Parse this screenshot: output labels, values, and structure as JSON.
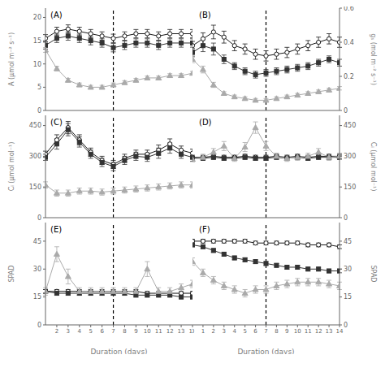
{
  "chart_data": [
    {
      "type": "line",
      "annotations": [
        "(A)"
      ],
      "ylabel": "A (μmol m⁻² s⁻¹)",
      "xlim": [
        1,
        14
      ],
      "xticks": [
        2,
        3,
        4,
        5,
        6,
        7,
        8,
        9,
        10,
        11,
        12,
        13,
        14
      ],
      "ylim": [
        0,
        22
      ],
      "yticks": [
        0,
        5,
        10,
        15,
        20
      ],
      "tick_labels": "y",
      "grid": false,
      "vline": 7,
      "x": [
        1,
        2,
        3,
        4,
        5,
        6,
        7,
        8,
        9,
        10,
        11,
        12,
        13,
        14
      ],
      "series": [
        {
          "color": "#1a1a1a",
          "marker": "open_circle",
          "values": [
            15.5,
            17,
            17.5,
            17,
            16.5,
            16,
            15.5,
            16,
            16.5,
            16.5,
            16,
            16.5,
            16.5,
            16.5
          ],
          "yerr": [
            0.8,
            0.9,
            0.9,
            0.9,
            0.9,
            0.9,
            0.9,
            0.9,
            0.9,
            0.9,
            0.9,
            0.9,
            0.9,
            0.9
          ]
        },
        {
          "color": "#333333",
          "marker": "square",
          "values": [
            14,
            15.5,
            16,
            15.5,
            15,
            14.5,
            13.5,
            14,
            14.5,
            14.5,
            14,
            14.5,
            14.5,
            14.5
          ],
          "yerr": [
            0.8,
            0.9,
            0.9,
            0.9,
            0.9,
            0.9,
            0.9,
            0.9,
            0.9,
            0.9,
            0.9,
            0.9,
            0.9,
            0.9
          ]
        },
        {
          "color": "#aaaaaa",
          "marker": "triangle",
          "values": [
            13,
            9,
            6.5,
            5.5,
            5,
            5,
            5.5,
            6,
            6.5,
            7,
            7,
            7.5,
            7.5,
            8
          ],
          "yerr": [
            0.5,
            0.5,
            0.4,
            0.4,
            0.4,
            0.4,
            0.4,
            0.4,
            0.4,
            0.4,
            0.4,
            0.4,
            0.4,
            0.4
          ]
        }
      ]
    },
    {
      "type": "line",
      "annotations": [
        "(B)"
      ],
      "ylabel": "gₛ (mol m⁻² s⁻¹)",
      "xlim": [
        0,
        14
      ],
      "xticks": [
        0,
        1,
        2,
        3,
        4,
        5,
        6,
        7,
        8,
        9,
        10,
        11,
        12,
        13,
        14
      ],
      "ylim": [
        0.0,
        0.6
      ],
      "yticks": [
        0.0,
        0.2,
        0.4,
        0.6
      ],
      "tick_labels": "y",
      "grid": false,
      "vline": 7,
      "x": [
        0,
        1,
        2,
        3,
        4,
        5,
        6,
        7,
        8,
        9,
        10,
        11,
        12,
        13,
        14
      ],
      "series": [
        {
          "color": "#1a1a1a",
          "marker": "open_circle",
          "values": [
            0.38,
            0.42,
            0.46,
            0.43,
            0.38,
            0.36,
            0.33,
            0.32,
            0.33,
            0.34,
            0.36,
            0.38,
            0.4,
            0.42,
            0.4
          ],
          "yerr": [
            0.025,
            0.035,
            0.04,
            0.035,
            0.03,
            0.03,
            0.03,
            0.03,
            0.03,
            0.03,
            0.03,
            0.03,
            0.03,
            0.03,
            0.03
          ]
        },
        {
          "color": "#333333",
          "marker": "square",
          "values": [
            0.34,
            0.38,
            0.36,
            0.3,
            0.26,
            0.23,
            0.21,
            0.22,
            0.23,
            0.24,
            0.25,
            0.26,
            0.28,
            0.3,
            0.28
          ],
          "yerr": [
            0.025,
            0.035,
            0.035,
            0.025,
            0.02,
            0.02,
            0.02,
            0.02,
            0.02,
            0.02,
            0.02,
            0.02,
            0.02,
            0.02,
            0.02
          ]
        },
        {
          "color": "#aaaaaa",
          "marker": "triangle",
          "values": [
            0.3,
            0.24,
            0.15,
            0.1,
            0.08,
            0.07,
            0.06,
            0.06,
            0.07,
            0.08,
            0.09,
            0.1,
            0.11,
            0.12,
            0.13
          ],
          "yerr": [
            0.02,
            0.02,
            0.015,
            0.01,
            0.01,
            0.01,
            0.01,
            0.01,
            0.01,
            0.01,
            0.01,
            0.01,
            0.01,
            0.01,
            0.01
          ]
        }
      ]
    },
    {
      "type": "line",
      "annotations": [
        "(C)"
      ],
      "ylabel": "Cᵢ (μmol mol⁻¹)",
      "xlim": [
        1,
        14
      ],
      "xticks": [
        2,
        3,
        4,
        5,
        6,
        7,
        8,
        9,
        10,
        11,
        12,
        13,
        14
      ],
      "ylim": [
        0,
        500
      ],
      "yticks": [
        0,
        150,
        300,
        450
      ],
      "tick_labels": "y",
      "grid": false,
      "vline": 7,
      "x": [
        1,
        2,
        3,
        4,
        5,
        6,
        7,
        8,
        9,
        10,
        11,
        12,
        13,
        14
      ],
      "series": [
        {
          "color": "#1a1a1a",
          "marker": "open_circle",
          "values": [
            310,
            380,
            440,
            380,
            320,
            280,
            260,
            290,
            310,
            310,
            330,
            360,
            330,
            315
          ],
          "yerr": [
            15,
            25,
            30,
            25,
            20,
            20,
            20,
            20,
            20,
            20,
            25,
            25,
            20,
            20
          ]
        },
        {
          "color": "#333333",
          "marker": "square",
          "values": [
            295,
            360,
            430,
            370,
            310,
            270,
            250,
            280,
            300,
            295,
            315,
            340,
            310,
            295
          ],
          "yerr": [
            15,
            25,
            30,
            25,
            20,
            20,
            20,
            20,
            20,
            20,
            25,
            25,
            20,
            20
          ]
        },
        {
          "color": "#aaaaaa",
          "marker": "triangle",
          "values": [
            160,
            120,
            120,
            130,
            130,
            125,
            130,
            135,
            140,
            145,
            150,
            155,
            160,
            160
          ],
          "yerr": [
            15,
            15,
            15,
            15,
            15,
            15,
            15,
            15,
            15,
            15,
            15,
            15,
            15,
            15
          ]
        }
      ]
    },
    {
      "type": "line",
      "annotations": [
        "(D)"
      ],
      "ylabel": "Cᵢ (μmol mol⁻¹)",
      "xlim": [
        0,
        14
      ],
      "xticks": [
        0,
        1,
        2,
        3,
        4,
        5,
        6,
        7,
        8,
        9,
        10,
        11,
        12,
        13,
        14
      ],
      "ylim": [
        0,
        500
      ],
      "yticks": [
        0,
        150,
        300,
        450
      ],
      "tick_labels": "y",
      "grid": false,
      "vline": 7,
      "x": [
        0,
        1,
        2,
        3,
        4,
        5,
        6,
        7,
        8,
        9,
        10,
        11,
        12,
        13,
        14
      ],
      "series": [
        {
          "color": "#1a1a1a",
          "marker": "open_circle",
          "values": [
            295,
            295,
            300,
            295,
            295,
            300,
            295,
            295,
            300,
            295,
            300,
            295,
            300,
            300,
            300
          ],
          "yerr": [
            10,
            10,
            10,
            10,
            10,
            10,
            10,
            10,
            10,
            10,
            10,
            10,
            10,
            10,
            10
          ]
        },
        {
          "color": "#333333",
          "marker": "square",
          "values": [
            290,
            290,
            295,
            290,
            290,
            295,
            290,
            290,
            295,
            290,
            295,
            290,
            295,
            295,
            295
          ],
          "yerr": [
            10,
            10,
            10,
            10,
            10,
            10,
            10,
            10,
            10,
            10,
            10,
            10,
            10,
            10,
            10
          ]
        },
        {
          "color": "#aaaaaa",
          "marker": "triangle",
          "values": [
            285,
            295,
            320,
            350,
            290,
            345,
            440,
            350,
            300,
            290,
            295,
            300,
            320,
            295,
            300
          ],
          "yerr": [
            12,
            15,
            18,
            22,
            15,
            22,
            28,
            22,
            15,
            15,
            15,
            15,
            18,
            15,
            15
          ]
        }
      ]
    },
    {
      "type": "line",
      "annotations": [
        "(E)"
      ],
      "ylabel": "SPAD",
      "xlabel": "Duration (days)",
      "xlim": [
        1,
        14
      ],
      "xticks": [
        2,
        3,
        4,
        5,
        6,
        7,
        8,
        9,
        10,
        11,
        12,
        13,
        14
      ],
      "ylim": [
        0,
        55
      ],
      "yticks": [
        0,
        15,
        30,
        45
      ],
      "grid": false,
      "vline": 7,
      "x": [
        1,
        2,
        3,
        4,
        5,
        6,
        7,
        8,
        9,
        10,
        11,
        12,
        13,
        14
      ],
      "series": [
        {
          "color": "#1a1a1a",
          "marker": "open_circle",
          "values": [
            18,
            18,
            18,
            18,
            18,
            18,
            18,
            18,
            18,
            17,
            17,
            17,
            17,
            17
          ],
          "yerr": [
            1,
            1,
            1,
            1,
            1,
            1,
            1,
            1,
            1,
            1,
            1,
            1,
            1,
            1
          ]
        },
        {
          "color": "#333333",
          "marker": "square",
          "values": [
            18,
            17,
            17,
            17,
            17,
            17,
            17,
            17,
            16,
            16,
            16,
            16,
            15,
            15
          ],
          "yerr": [
            1,
            1,
            1,
            1,
            1,
            1,
            1,
            1,
            1,
            1,
            1,
            1,
            1,
            1
          ]
        },
        {
          "color": "#aaaaaa",
          "marker": "triangle",
          "values": [
            18,
            38,
            26,
            18,
            18,
            18,
            18,
            18,
            18,
            30,
            18,
            18,
            20,
            22
          ],
          "yerr": [
            2,
            4,
            4,
            2,
            2,
            2,
            2,
            2,
            2,
            4,
            2,
            2,
            2,
            2
          ]
        }
      ]
    },
    {
      "type": "line",
      "annotations": [
        "(F)"
      ],
      "ylabel": "SPAD",
      "xlabel": "Duration (days)",
      "xlim": [
        0,
        14
      ],
      "xticks": [
        0,
        1,
        2,
        3,
        4,
        5,
        6,
        7,
        8,
        9,
        10,
        11,
        12,
        13,
        14
      ],
      "ylim": [
        0,
        55
      ],
      "yticks": [
        0,
        15,
        30,
        45
      ],
      "grid": false,
      "vline": 7,
      "x": [
        0,
        1,
        2,
        3,
        4,
        5,
        6,
        7,
        8,
        9,
        10,
        11,
        12,
        13,
        14
      ],
      "series": [
        {
          "color": "#1a1a1a",
          "marker": "open_circle",
          "values": [
            45,
            45,
            45,
            45,
            45,
            45,
            44,
            44,
            44,
            44,
            44,
            43,
            43,
            43,
            42
          ],
          "yerr": [
            1,
            1,
            1,
            1,
            1,
            1,
            1,
            1,
            1,
            1,
            1,
            1,
            1,
            1,
            1
          ]
        },
        {
          "color": "#333333",
          "marker": "square",
          "values": [
            43,
            42,
            40,
            38,
            36,
            35,
            34,
            33,
            32,
            31,
            31,
            30,
            30,
            29,
            29
          ],
          "yerr": [
            1,
            1,
            1,
            1,
            1,
            1,
            1,
            1,
            1,
            1,
            1,
            1,
            1,
            1,
            1
          ]
        },
        {
          "color": "#aaaaaa",
          "marker": "triangle",
          "values": [
            34,
            28,
            24,
            21,
            19,
            17,
            19,
            19,
            21,
            22,
            23,
            23,
            23,
            22,
            21
          ],
          "yerr": [
            2,
            2,
            2,
            2,
            2,
            2,
            2,
            2,
            2,
            2,
            2,
            2,
            2,
            2,
            2
          ]
        }
      ]
    }
  ]
}
